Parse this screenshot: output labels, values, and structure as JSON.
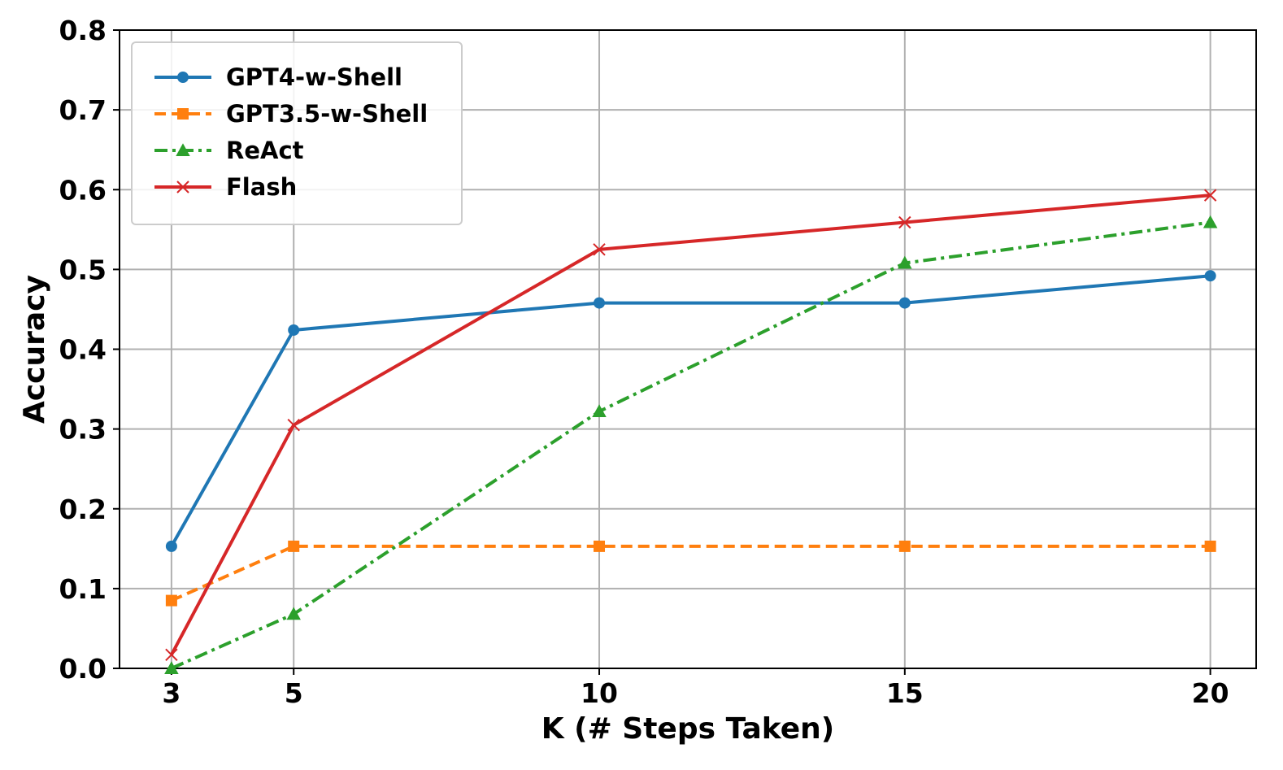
{
  "chart_data": {
    "type": "line",
    "title": "",
    "xlabel": "K (# Steps Taken)",
    "ylabel": "Accuracy",
    "x": [
      3,
      5,
      10,
      15,
      20
    ],
    "xticks": [
      "3",
      "5",
      "10",
      "15",
      "20"
    ],
    "yticks": [
      "0.0",
      "0.1",
      "0.2",
      "0.3",
      "0.4",
      "0.5",
      "0.6",
      "0.7",
      "0.8"
    ],
    "xlim": [
      2.15,
      20.75
    ],
    "ylim": [
      0,
      0.8
    ],
    "grid": true,
    "legend_position": "top-left",
    "series": [
      {
        "name": "GPT4-w-Shell",
        "color": "#1f77b4",
        "marker": "circle",
        "linestyle": "solid",
        "values": [
          0.153,
          0.424,
          0.458,
          0.458,
          0.492
        ]
      },
      {
        "name": "GPT3.5-w-Shell",
        "color": "#ff7f0e",
        "marker": "square",
        "linestyle": "dashed",
        "values": [
          0.085,
          0.153,
          0.153,
          0.153,
          0.153
        ]
      },
      {
        "name": "ReAct",
        "color": "#2ca02c",
        "marker": "triangle",
        "linestyle": "dashdot",
        "values": [
          0.0,
          0.068,
          0.322,
          0.508,
          0.559
        ]
      },
      {
        "name": "Flash",
        "color": "#d62728",
        "marker": "x",
        "linestyle": "solid",
        "values": [
          0.017,
          0.305,
          0.525,
          0.559,
          0.593
        ]
      }
    ]
  }
}
